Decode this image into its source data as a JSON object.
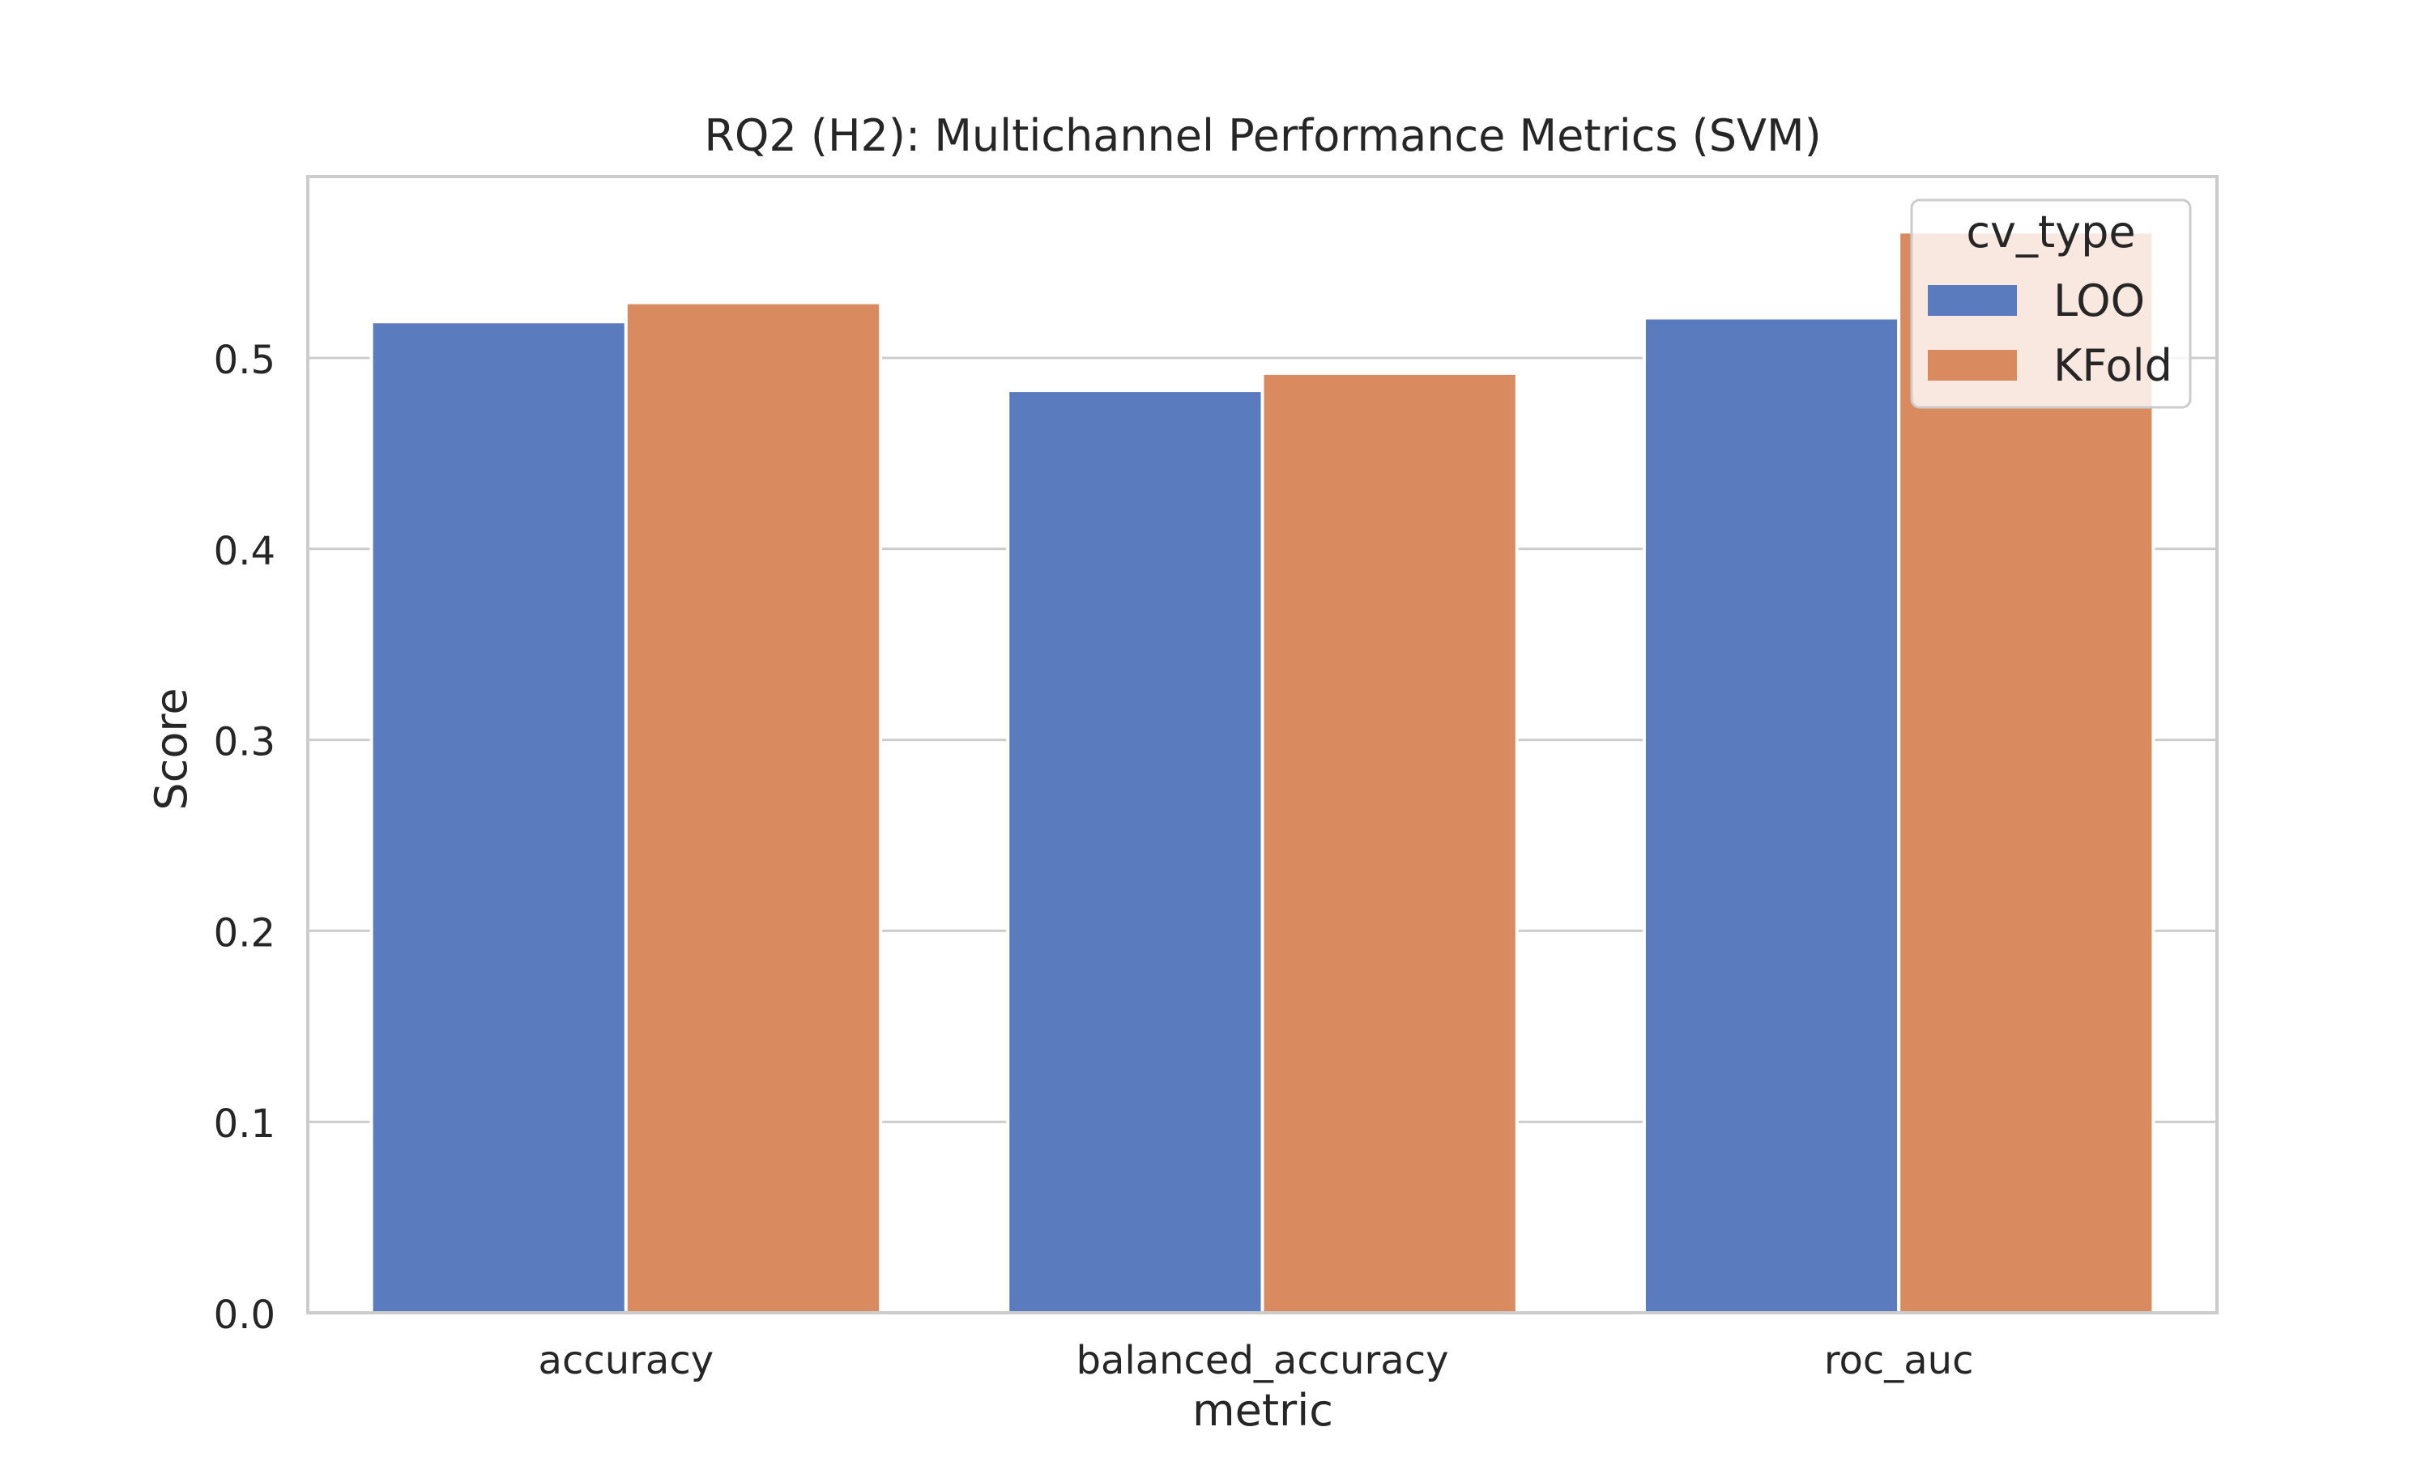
{
  "chart_data": {
    "type": "bar",
    "title": "RQ2 (H2): Multichannel Performance Metrics (SVM)",
    "xlabel": "metric",
    "ylabel": "Score",
    "categories": [
      "accuracy",
      "balanced_accuracy",
      "roc_auc"
    ],
    "series": [
      {
        "name": "LOO",
        "values": [
          0.519,
          0.483,
          0.521
        ]
      },
      {
        "name": "KFold",
        "values": [
          0.529,
          0.492,
          0.566
        ]
      }
    ],
    "ylim": [
      0,
      0.595
    ],
    "yticks": [
      "0.0",
      "0.1",
      "0.2",
      "0.3",
      "0.4",
      "0.5"
    ],
    "grid": "horizontal",
    "legend": {
      "title": "cv_type",
      "placement": "top-right"
    },
    "colors": {
      "LOO": "#5a7bbe",
      "KFold": "#d98a5f",
      "grid": "#cccccc",
      "frame": "#cccccc",
      "text": "#262626"
    }
  }
}
